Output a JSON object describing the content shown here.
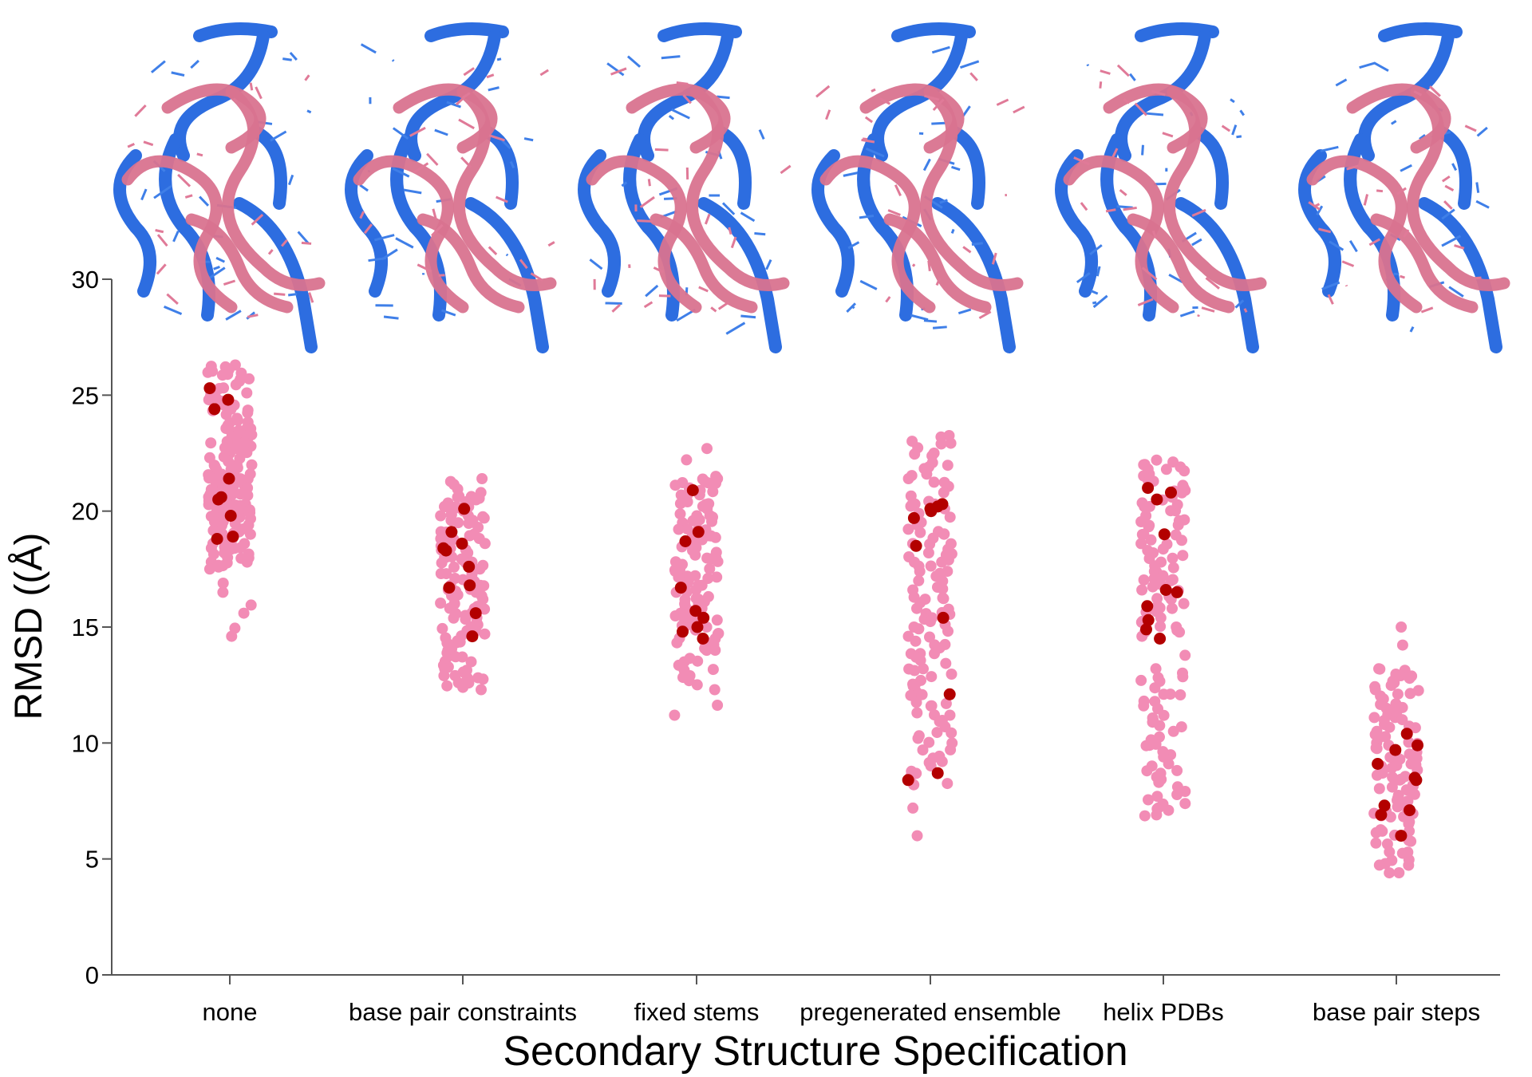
{
  "chart_data": {
    "type": "scatter",
    "xlabel": "Secondary Structure Specification",
    "ylabel": "RMSD ((Å)",
    "ylim": [
      0,
      30
    ],
    "yticks": [
      0,
      5,
      10,
      15,
      20,
      25,
      30
    ],
    "grid": false,
    "colors": {
      "points": "#f28cb5",
      "highlight": "#b30000",
      "axis": "#555555"
    },
    "insets": [
      {
        "category": "none",
        "description_icon": "rna-structure-overlay"
      },
      {
        "category": "base pair constraints",
        "description_icon": "rna-structure-overlay"
      },
      {
        "category": "fixed stems",
        "description_icon": "rna-structure-overlay"
      },
      {
        "category": "pregenerated ensemble",
        "description_icon": "rna-structure-overlay"
      },
      {
        "category": "helix PDBs",
        "description_icon": "rna-structure-overlay"
      },
      {
        "category": "base pair steps",
        "description_icon": "rna-structure-overlay"
      }
    ],
    "categories": [
      "none",
      "base pair constraints",
      "fixed stems",
      "pregenerated ensemble",
      "helix PDBs",
      "base pair steps"
    ],
    "series": [
      {
        "category": "none",
        "y_range": [
          14.6,
          26.3
        ],
        "points": [
          26.3,
          26.1,
          25.9,
          25.6,
          25.1,
          24.9,
          24.6,
          24.4,
          24.0,
          23.7,
          23.5,
          23.2,
          23.0,
          22.7,
          22.5,
          22.3,
          22.0,
          21.8,
          21.6,
          21.5,
          21.3,
          21.1,
          21.0,
          20.9,
          20.7,
          20.6,
          20.5,
          20.4,
          20.3,
          20.2,
          20.1,
          20.0,
          19.8,
          19.6,
          19.4,
          19.2,
          19.0,
          18.8,
          18.6,
          18.4,
          18.2,
          18.0,
          17.8,
          17.5,
          16.5,
          15.6,
          14.6
        ],
        "highlights": [
          25.3,
          24.8,
          24.4,
          21.4,
          20.6,
          20.5,
          19.8,
          18.9,
          18.8
        ]
      },
      {
        "category": "base pair constraints",
        "y_range": [
          12.3,
          21.4
        ],
        "points": [
          21.4,
          20.8,
          20.6,
          20.4,
          20.2,
          20.0,
          19.8,
          19.6,
          19.3,
          19.0,
          18.8,
          18.5,
          18.2,
          18.0,
          17.8,
          17.5,
          17.3,
          17.0,
          16.8,
          16.5,
          16.3,
          16.0,
          15.8,
          15.5,
          15.2,
          15.0,
          14.7,
          14.4,
          14.1,
          13.8,
          13.5,
          13.2,
          12.9,
          12.6,
          12.3
        ],
        "highlights": [
          20.1,
          19.1,
          18.6,
          18.4,
          18.3,
          17.6,
          16.8,
          16.7,
          15.6,
          14.6
        ]
      },
      {
        "category": "fixed stems",
        "y_range": [
          11.2,
          22.7
        ],
        "points": [
          22.7,
          21.5,
          21.2,
          21.0,
          20.7,
          20.4,
          20.1,
          19.8,
          19.5,
          19.2,
          18.9,
          18.6,
          18.3,
          18.0,
          17.7,
          17.4,
          17.1,
          16.8,
          16.5,
          16.2,
          15.9,
          15.6,
          15.3,
          15.0,
          14.7,
          14.4,
          14.0,
          13.5,
          12.9,
          12.3,
          11.2
        ],
        "highlights": [
          20.9,
          19.1,
          18.7,
          16.7,
          15.7,
          15.4,
          15.0,
          14.8,
          14.5
        ]
      },
      {
        "category": "pregenerated ensemble",
        "y_range": [
          6.0,
          23.2
        ],
        "points": [
          23.2,
          22.9,
          22.5,
          21.9,
          21.4,
          20.8,
          20.3,
          19.9,
          19.4,
          19.0,
          18.6,
          18.2,
          17.8,
          17.4,
          17.0,
          16.6,
          16.2,
          15.8,
          15.4,
          15.0,
          14.6,
          14.1,
          13.7,
          13.2,
          12.7,
          12.2,
          11.7,
          11.2,
          10.7,
          10.2,
          9.7,
          9.2,
          8.7,
          8.2,
          6.0
        ],
        "highlights": [
          20.3,
          20.2,
          20.1,
          20.0,
          19.7,
          18.5,
          15.4,
          12.1,
          8.7,
          8.4
        ]
      },
      {
        "category": "helix PDBs",
        "y_range": [
          6.9,
          22.2
        ],
        "points": [
          22.2,
          21.9,
          21.6,
          21.3,
          21.0,
          20.6,
          20.2,
          19.8,
          19.4,
          19.0,
          18.6,
          18.2,
          17.8,
          17.4,
          17.0,
          16.6,
          16.2,
          15.8,
          15.4,
          15.0,
          14.6,
          13.2,
          12.7,
          12.1,
          11.6,
          11.0,
          10.5,
          9.9,
          9.4,
          8.8,
          8.3,
          7.7,
          7.2,
          6.9
        ],
        "highlights": [
          21.0,
          20.8,
          20.5,
          19.0,
          16.6,
          16.5,
          15.9,
          15.3,
          14.9,
          14.5
        ]
      },
      {
        "category": "base pair steps",
        "y_range": [
          4.4,
          15.0
        ],
        "points": [
          15.0,
          13.2,
          12.9,
          12.6,
          12.3,
          11.9,
          11.5,
          11.1,
          10.8,
          10.5,
          10.2,
          9.9,
          9.6,
          9.3,
          9.0,
          8.7,
          8.4,
          8.1,
          7.8,
          7.5,
          7.2,
          6.9,
          6.6,
          6.2,
          5.8,
          5.3,
          4.8,
          4.4
        ],
        "highlights": [
          10.4,
          9.9,
          9.7,
          9.1,
          8.5,
          8.4,
          7.3,
          7.1,
          6.9,
          6.0
        ]
      }
    ]
  }
}
